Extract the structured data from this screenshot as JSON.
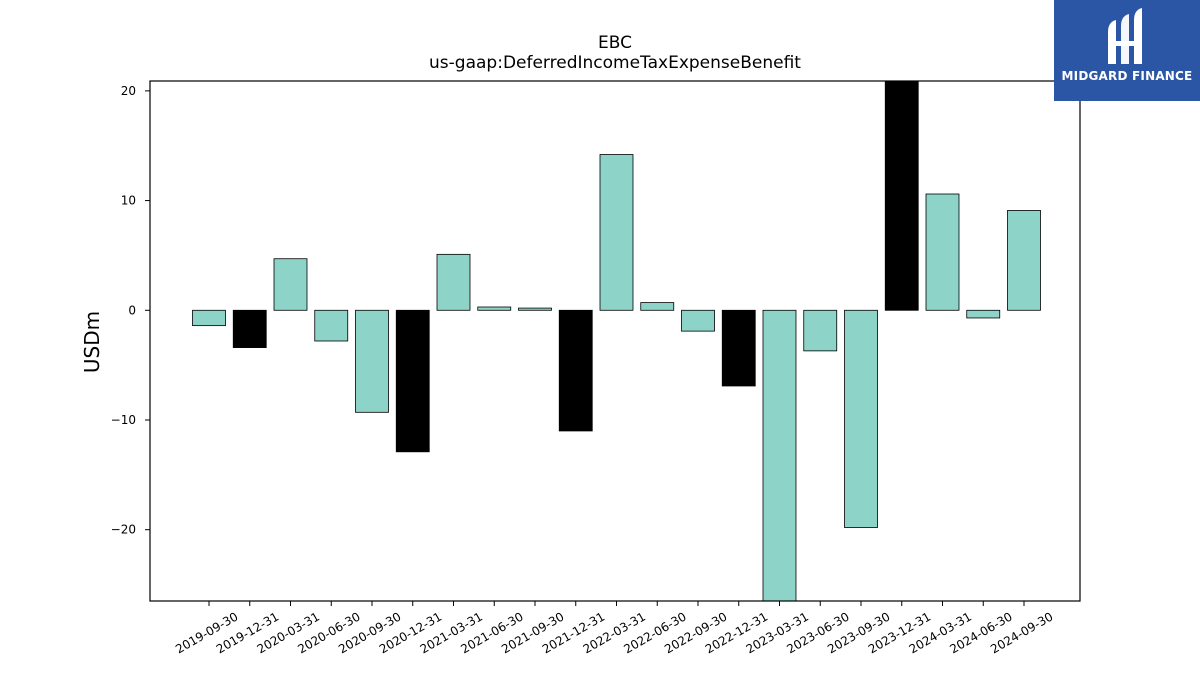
{
  "chart_data": {
    "type": "bar",
    "title": "EBC",
    "subtitle": "us-gaap:DeferredIncomeTaxExpenseBenefit",
    "xlabel": "",
    "ylabel": "USDm",
    "ylim": [
      -26.5,
      20.9
    ],
    "yticks": [
      -20,
      -10,
      0,
      10,
      20
    ],
    "grid": false,
    "categories": [
      "2019-09-30",
      "2019-12-31",
      "2020-03-31",
      "2020-06-30",
      "2020-09-30",
      "2020-12-31",
      "2021-03-31",
      "2021-06-30",
      "2021-09-30",
      "2021-12-31",
      "2022-03-31",
      "2022-06-30",
      "2022-09-30",
      "2022-12-31",
      "2023-03-31",
      "2023-06-30",
      "2023-09-30",
      "2023-12-31",
      "2024-03-31",
      "2024-06-30",
      "2024-09-30"
    ],
    "values": [
      -1.4,
      -3.4,
      4.7,
      -2.8,
      -9.3,
      -12.9,
      5.1,
      0.3,
      0.2,
      -11.0,
      14.2,
      0.7,
      -1.9,
      -6.9,
      -26.5,
      -3.7,
      -19.8,
      20.9,
      10.6,
      -0.7,
      9.1
    ],
    "highlight": [
      false,
      true,
      false,
      false,
      false,
      true,
      false,
      false,
      false,
      true,
      false,
      false,
      false,
      true,
      false,
      false,
      false,
      true,
      false,
      false,
      false
    ],
    "colors": {
      "bar": "#8dd3c7",
      "highlight": "#000000",
      "edge": "#000000"
    }
  },
  "logo": {
    "text": "MIDGARD FINANCE",
    "bg": "#2b56a6"
  }
}
